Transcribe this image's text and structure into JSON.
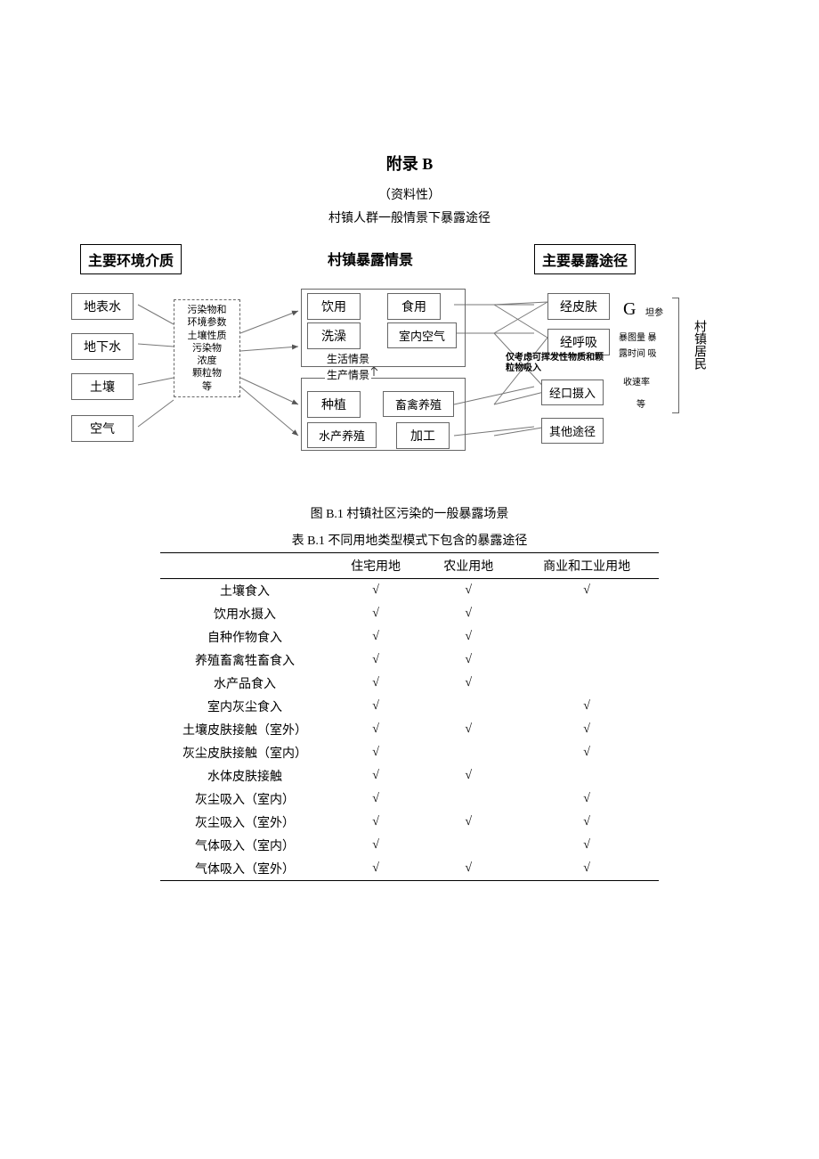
{
  "header": {
    "appendix": "附录 B",
    "subtitle1": "（资料性）",
    "subtitle2": "村镇人群一般情景下暴露途径"
  },
  "diagram": {
    "col_headers": [
      "主要环境介质",
      "村镇暴露情景",
      "主要暴露途径"
    ],
    "media_nodes": [
      "地表水",
      "地下水",
      "土壤",
      "空气"
    ],
    "param_box_lines": [
      "污染物和",
      "环境参数",
      "土壤性质",
      "污染物",
      "浓度",
      "颗粒物",
      "等"
    ],
    "life_scene": {
      "label": "生活情景",
      "nodes": [
        "饮用",
        "食用",
        "洗澡",
        "室内空气"
      ]
    },
    "prod_scene": {
      "label": "生产情景",
      "nodes": [
        "种植",
        "畜禽养殖",
        "水产养殖",
        "加工"
      ]
    },
    "route_nodes": [
      "经皮肤",
      "经呼吸",
      "经口摄入",
      "其他途径"
    ],
    "note_volatile": "仅考虑可挥发性物质和颗粒物吸入",
    "g_mark": "G",
    "right_params": [
      "坦参",
      "暴图量 暴",
      "露时间 吸",
      "收速率",
      "等"
    ],
    "right_label": "村镇居民",
    "figure_caption": "图 B.1 村镇社区污染的一般暴露场景"
  },
  "table": {
    "caption": "表 B.1 不同用地类型模式下包含的暴露途径",
    "columns": [
      "",
      "住宅用地",
      "农业用地",
      "商业和工业用地"
    ],
    "rows": [
      {
        "label": "土壤食入",
        "marks": [
          "√",
          "√",
          "√"
        ]
      },
      {
        "label": "饮用水摄入",
        "marks": [
          "√",
          "√",
          ""
        ]
      },
      {
        "label": "自种作物食入",
        "marks": [
          "√",
          "√",
          ""
        ]
      },
      {
        "label": "养殖畜禽牲畜食入",
        "marks": [
          "√",
          "√",
          ""
        ]
      },
      {
        "label": "水产品食入",
        "marks": [
          "√",
          "√",
          ""
        ]
      },
      {
        "label": "室内灰尘食入",
        "marks": [
          "√",
          "",
          "√"
        ]
      },
      {
        "label": "土壤皮肤接触（室外）",
        "marks": [
          "√",
          "√",
          "√"
        ]
      },
      {
        "label": "灰尘皮肤接触（室内）",
        "marks": [
          "√",
          "",
          "√"
        ]
      },
      {
        "label": "水体皮肤接触",
        "marks": [
          "√",
          "√",
          ""
        ]
      },
      {
        "label": "灰尘吸入（室内）",
        "marks": [
          "√",
          "",
          "√"
        ]
      },
      {
        "label": "灰尘吸入（室外）",
        "marks": [
          "√",
          "√",
          "√"
        ]
      },
      {
        "label": "气体吸入（室内）",
        "marks": [
          "√",
          "",
          "√"
        ]
      },
      {
        "label": "气体吸入（室外）",
        "marks": [
          "√",
          "√",
          "√"
        ]
      }
    ],
    "check_mark": "√",
    "colors": {
      "border": "#000000",
      "text": "#000000",
      "bg": "#ffffff"
    }
  }
}
